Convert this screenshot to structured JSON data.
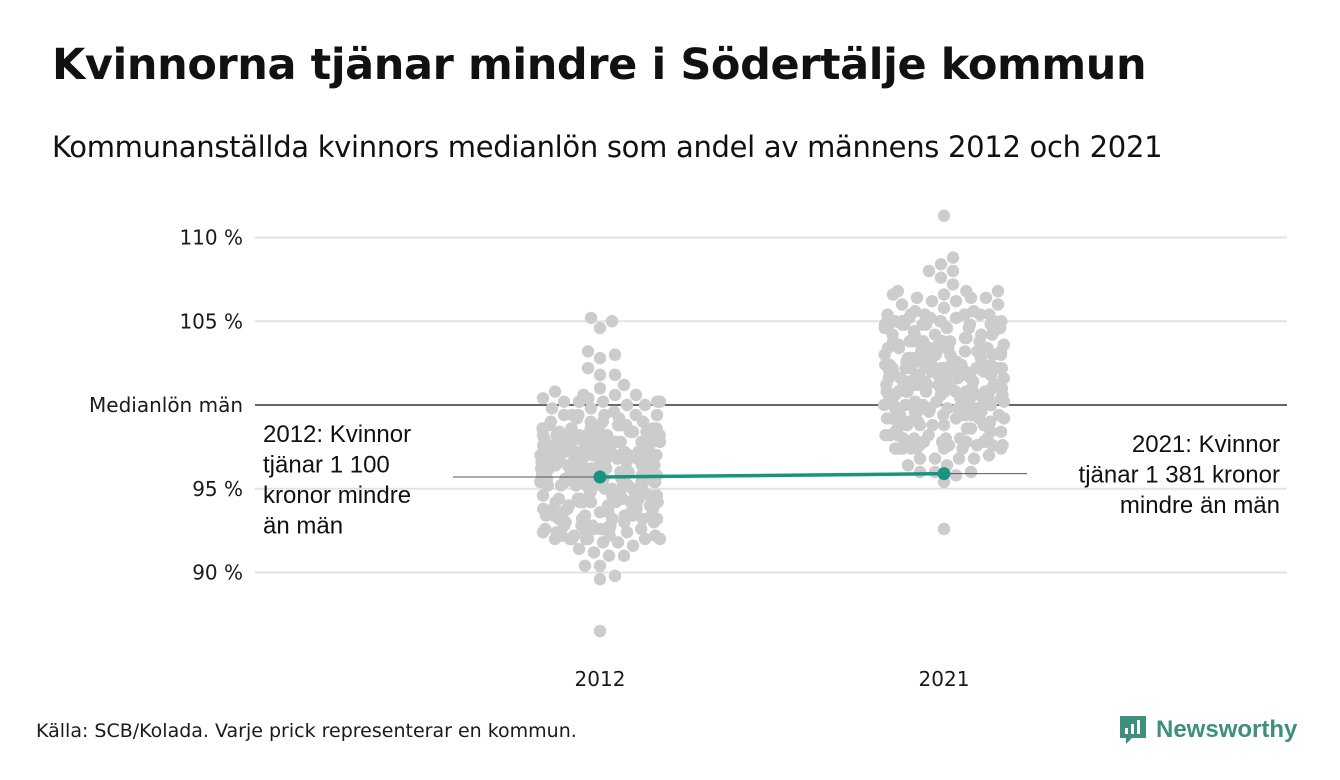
{
  "title": "Kvinnorna tjänar mindre i Södertälje kommun",
  "subtitle": "Kommunanställda kvinnors medianlön som andel av männens 2012 och 2021",
  "source": "Källa: SCB/Kolada. Varje prick representerar en kommun.",
  "brand": {
    "name": "Newsworthy",
    "icon": "newsworthy-logo-icon",
    "color": "#3e8f7e"
  },
  "chart_data": {
    "type": "scatter",
    "title": "Kvinnorna tjänar mindre i Södertälje kommun",
    "subtitle": "Kommunanställda kvinnors medianlön som andel av männens 2012 och 2021",
    "categories": [
      "2012",
      "2021"
    ],
    "ylim": [
      85.5,
      112
    ],
    "yticks": [
      {
        "value": 90,
        "label": "90 %"
      },
      {
        "value": 95,
        "label": "95 %"
      },
      {
        "value": 105,
        "label": "105 %"
      },
      {
        "value": 110,
        "label": "110 %"
      }
    ],
    "reference_line": {
      "value": 100,
      "label": "Medianlön män"
    },
    "grid": true,
    "colors": {
      "dots": "#cccccc",
      "highlight": "#1a9480",
      "grid": "#e3e3e3",
      "reference": "#333333"
    },
    "highlight": {
      "name": "Södertälje",
      "values": [
        95.7,
        95.9
      ]
    },
    "annotations": [
      {
        "year": "2012",
        "lines": [
          "2012: Kvinnor",
          "tjänar 1 100",
          "kronor mindre",
          "än män"
        ]
      },
      {
        "year": "2021",
        "lines": [
          "2021: Kvinnor",
          "tjänar 1 381 kronor",
          "mindre än män"
        ]
      }
    ],
    "series": [
      {
        "category": "2012",
        "center": 96.3,
        "spread": 2.8,
        "min": 86.5,
        "max": 105.2,
        "count": 290
      },
      {
        "category": "2021",
        "center": 101.6,
        "spread": 2.9,
        "min": 92.6,
        "max": 111.3,
        "count": 290
      }
    ]
  }
}
